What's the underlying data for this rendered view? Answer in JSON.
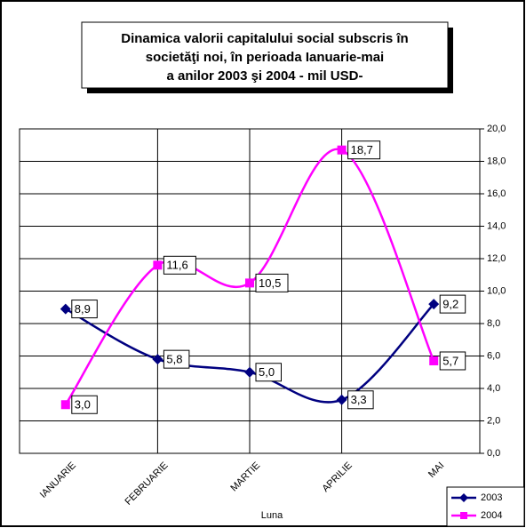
{
  "chart_data": {
    "type": "line",
    "title": [
      "Dinamica  valorii capitalului social subscris în",
      "societăţi noi,  în perioada Ianuarie-mai",
      "a anilor 2003 şi 2004  - mil  USD-"
    ],
    "x_label": "Luna",
    "categories": [
      "IANUARIE",
      "FEBRUARIE",
      "MARTIE",
      "APRILIE",
      "MAI"
    ],
    "series": [
      {
        "name": "2003",
        "color": "#000080",
        "marker": "diamond",
        "values": [
          8.9,
          5.8,
          5.0,
          3.3,
          9.2
        ],
        "value_labels": [
          "8,9",
          "5,8",
          "5,0",
          "3,3",
          "9,2"
        ]
      },
      {
        "name": "2004",
        "color": "#ff00ff",
        "marker": "square",
        "values": [
          3.0,
          11.6,
          10.5,
          18.7,
          5.7
        ],
        "value_labels": [
          "3,0",
          "11,6",
          "10,5",
          "18,7",
          "5,7"
        ]
      }
    ],
    "ylim": [
      0,
      20
    ],
    "yticks": [
      {
        "value": 0,
        "label": "0,0"
      },
      {
        "value": 2,
        "label": "2,0"
      },
      {
        "value": 4,
        "label": "4,0"
      },
      {
        "value": 6,
        "label": "6,0"
      },
      {
        "value": 8,
        "label": "8,0"
      },
      {
        "value": 10,
        "label": "10,0"
      },
      {
        "value": 12,
        "label": "12,0"
      },
      {
        "value": 14,
        "label": "14,0"
      },
      {
        "value": 16,
        "label": "16,0"
      },
      {
        "value": 18,
        "label": "18,0"
      },
      {
        "value": 20,
        "label": "20,0"
      }
    ],
    "grid": true,
    "smooth": true,
    "legend": "bottom-right"
  }
}
